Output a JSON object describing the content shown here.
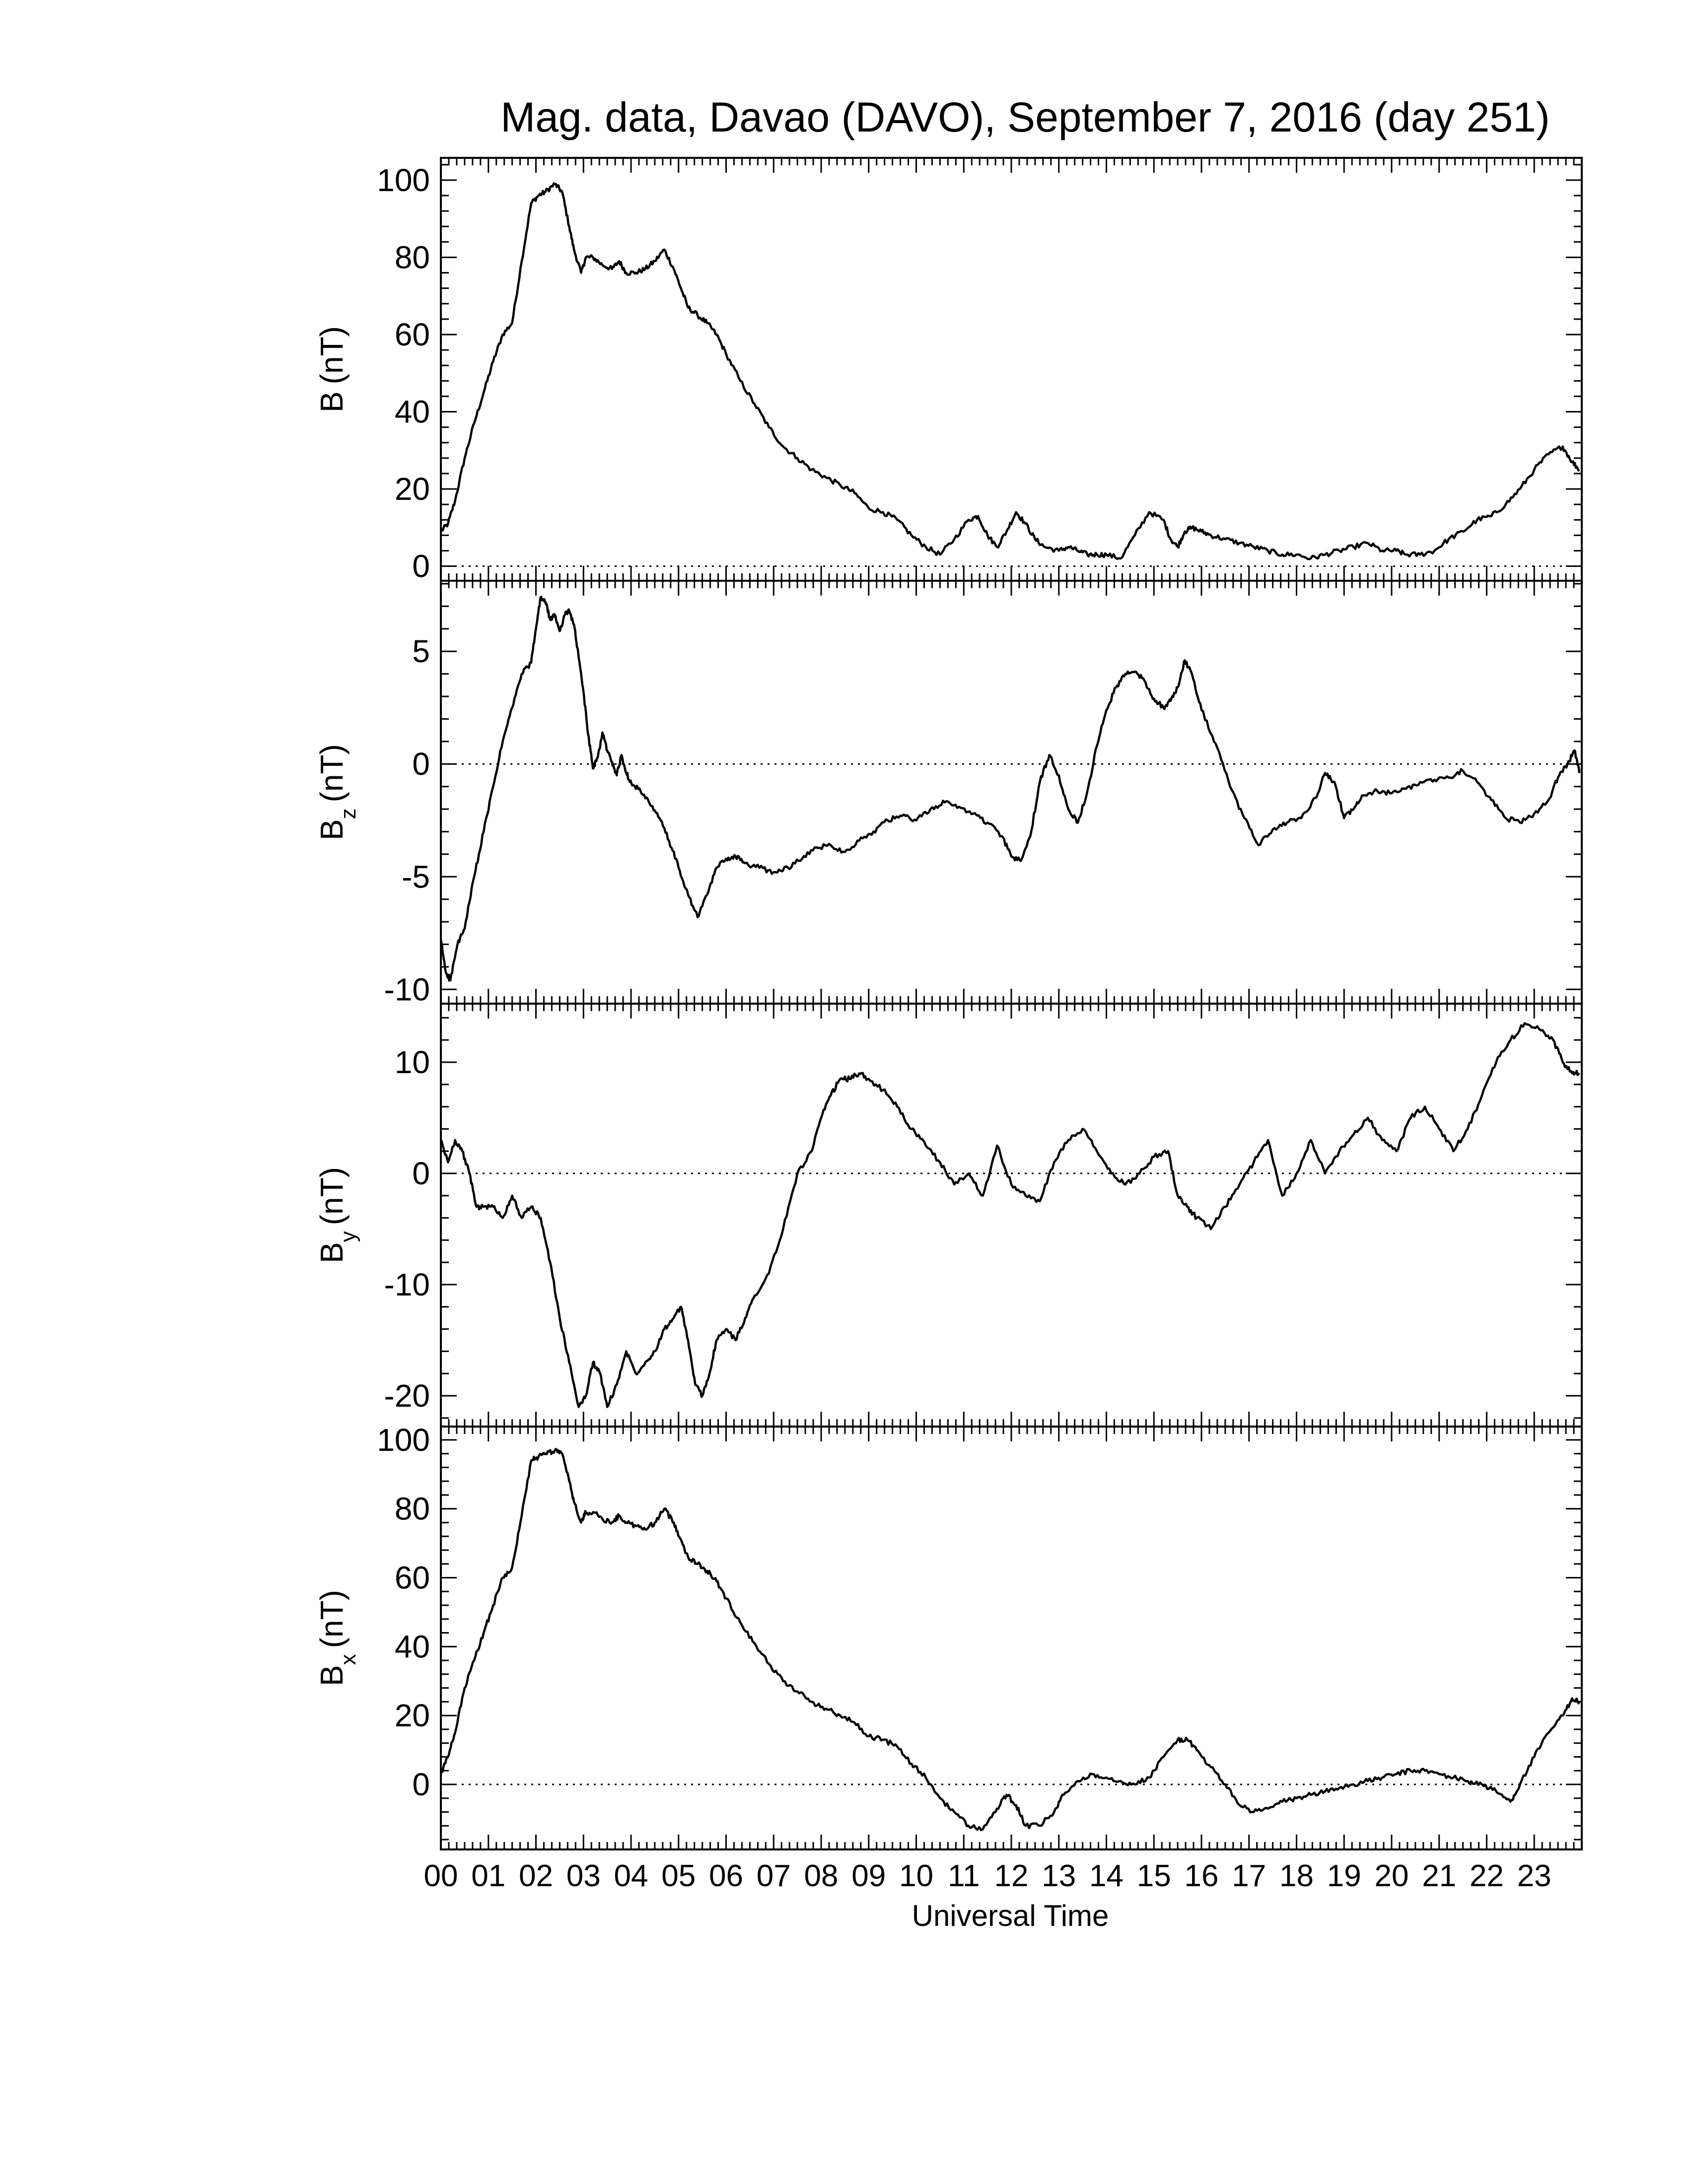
{
  "title": "Mag. data, Davao (DAVO), September 7, 2016 (day 251)",
  "x_axis": {
    "label": "Universal Time",
    "range": [
      0,
      24
    ],
    "tick_labels": [
      "00",
      "01",
      "02",
      "03",
      "04",
      "05",
      "06",
      "07",
      "08",
      "09",
      "10",
      "11",
      "12",
      "13",
      "14",
      "15",
      "16",
      "17",
      "18",
      "19",
      "20",
      "21",
      "22",
      "23"
    ]
  },
  "line_color": "#000000",
  "zero_line": "dotted",
  "chart_data": [
    {
      "type": "line",
      "name": "B",
      "ylabel_main": "B",
      "ylabel_sub": "",
      "ylabel_unit": "(nT)",
      "ylim": [
        -3,
        105
      ],
      "yticks": [
        0,
        20,
        40,
        60,
        80,
        100
      ],
      "x": [
        0,
        0.15,
        0.3,
        0.5,
        0.7,
        0.9,
        1.1,
        1.3,
        1.5,
        1.7,
        1.9,
        2.05,
        2.2,
        2.4,
        2.55,
        2.7,
        2.8,
        2.95,
        3.05,
        3.2,
        3.4,
        3.6,
        3.75,
        3.9,
        4.1,
        4.3,
        4.5,
        4.7,
        4.9,
        5.05,
        5.2,
        5.4,
        5.6,
        5.8,
        6.0,
        6.3,
        6.6,
        6.9,
        7.2,
        7.5,
        7.8,
        8.1,
        8.4,
        8.7,
        9.0,
        9.3,
        9.6,
        9.9,
        10.2,
        10.5,
        10.8,
        11.1,
        11.3,
        11.5,
        11.7,
        11.9,
        12.1,
        12.3,
        12.5,
        12.7,
        13.0,
        13.2,
        13.4,
        13.6,
        13.8,
        14.0,
        14.3,
        14.6,
        14.9,
        15.2,
        15.35,
        15.5,
        15.65,
        15.8,
        16.0,
        16.2,
        16.5,
        16.8,
        17.1,
        17.4,
        17.7,
        18.0,
        18.3,
        18.6,
        18.9,
        19.2,
        19.5,
        19.8,
        20.1,
        20.3,
        20.6,
        20.9,
        21.2,
        21.5,
        21.8,
        22.1,
        22.4,
        22.7,
        23.0,
        23.3,
        23.6,
        23.8,
        23.95
      ],
      "values": [
        9,
        11,
        17,
        28,
        37,
        45,
        53,
        60,
        63,
        79,
        94,
        96,
        97,
        99,
        97,
        88,
        82,
        76,
        80,
        80,
        78,
        77,
        79,
        76,
        76,
        77,
        79,
        82,
        77,
        72,
        67,
        65,
        63,
        60,
        55,
        48,
        42,
        36,
        31,
        28,
        25,
        23,
        21,
        19,
        15,
        14,
        12,
        8,
        5,
        3,
        7,
        12,
        13,
        8,
        5,
        9,
        14,
        11,
        7,
        5,
        4,
        5,
        4,
        3,
        3,
        3,
        2,
        8,
        14,
        12,
        7,
        5,
        9,
        10,
        9,
        8,
        7,
        6,
        5,
        4,
        3,
        3,
        2,
        3,
        4,
        5,
        6,
        4,
        4,
        3,
        3,
        4,
        7,
        9,
        12,
        13,
        16,
        20,
        25,
        29,
        31,
        27,
        25
      ]
    },
    {
      "type": "line",
      "name": "Bz",
      "ylabel_main": "B",
      "ylabel_sub": "z",
      "ylabel_unit": "(nT)",
      "ylim": [
        -10.5,
        8
      ],
      "yticks": [
        -10,
        -5,
        0,
        5
      ],
      "x": [
        0,
        0.1,
        0.2,
        0.35,
        0.5,
        0.7,
        0.9,
        1.1,
        1.3,
        1.5,
        1.7,
        1.9,
        2.0,
        2.1,
        2.2,
        2.3,
        2.4,
        2.5,
        2.6,
        2.7,
        2.8,
        2.9,
        3.0,
        3.1,
        3.2,
        3.3,
        3.4,
        3.5,
        3.6,
        3.7,
        3.8,
        3.9,
        4.0,
        4.2,
        4.4,
        4.6,
        4.8,
        5.0,
        5.2,
        5.4,
        5.6,
        5.8,
        6.0,
        6.2,
        6.4,
        6.7,
        7.0,
        7.3,
        7.6,
        7.9,
        8.2,
        8.5,
        8.8,
        9.1,
        9.4,
        9.7,
        10.0,
        10.3,
        10.6,
        10.9,
        11.2,
        11.5,
        11.8,
        12.0,
        12.2,
        12.4,
        12.6,
        12.8,
        13.0,
        13.2,
        13.4,
        13.6,
        13.8,
        14.0,
        14.2,
        14.4,
        14.6,
        14.8,
        15.0,
        15.2,
        15.35,
        15.5,
        15.65,
        15.8,
        16.0,
        16.3,
        16.6,
        16.9,
        17.2,
        17.5,
        17.8,
        18.1,
        18.4,
        18.6,
        18.8,
        19.0,
        19.2,
        19.4,
        19.7,
        20.0,
        20.3,
        20.6,
        20.9,
        21.2,
        21.5,
        21.8,
        22.1,
        22.4,
        22.7,
        23.0,
        23.3,
        23.5,
        23.7,
        23.85,
        23.95
      ],
      "values": [
        -7.8,
        -9.2,
        -9.6,
        -8.0,
        -7.3,
        -5.0,
        -3.0,
        -1.0,
        1.0,
        2.5,
        4.0,
        4.5,
        6.0,
        7.4,
        7.2,
        6.4,
        6.6,
        5.9,
        6.6,
        6.8,
        6.2,
        4.7,
        3.2,
        1.3,
        -0.2,
        0.3,
        1.4,
        0.6,
        0.1,
        -0.5,
        0.4,
        -0.4,
        -0.8,
        -1.2,
        -1.8,
        -2.4,
        -3.4,
        -4.6,
        -5.8,
        -6.8,
        -5.8,
        -4.6,
        -4.2,
        -4.1,
        -4.4,
        -4.6,
        -4.8,
        -4.6,
        -4.2,
        -3.7,
        -3.6,
        -3.9,
        -3.4,
        -3.0,
        -2.5,
        -2.3,
        -2.5,
        -2.0,
        -1.7,
        -1.9,
        -2.2,
        -2.6,
        -3.2,
        -4.1,
        -4.3,
        -3.2,
        -0.8,
        0.4,
        -0.5,
        -2.0,
        -2.6,
        -1.2,
        0.8,
        2.4,
        3.4,
        4.0,
        4.1,
        3.7,
        2.9,
        2.5,
        2.8,
        3.4,
        4.6,
        4.0,
        2.4,
        0.9,
        -1.0,
        -2.4,
        -3.6,
        -2.9,
        -2.6,
        -2.4,
        -1.5,
        -0.4,
        -0.8,
        -2.4,
        -2.0,
        -1.4,
        -1.2,
        -1.3,
        -1.1,
        -0.8,
        -0.7,
        -0.6,
        -0.3,
        -0.8,
        -1.6,
        -2.4,
        -2.6,
        -2.2,
        -1.6,
        -0.6,
        0.0,
        0.6,
        -0.4
      ]
    },
    {
      "type": "line",
      "name": "By",
      "ylabel_main": "B",
      "ylabel_sub": "y",
      "ylabel_unit": "(nT)",
      "ylim": [
        -22.5,
        15
      ],
      "yticks": [
        -20,
        -10,
        0,
        10
      ],
      "x": [
        0,
        0.15,
        0.3,
        0.45,
        0.6,
        0.75,
        0.9,
        1.1,
        1.3,
        1.5,
        1.7,
        1.9,
        2.1,
        2.3,
        2.5,
        2.7,
        2.9,
        3.05,
        3.2,
        3.35,
        3.5,
        3.7,
        3.9,
        4.1,
        4.3,
        4.5,
        4.7,
        4.9,
        5.05,
        5.2,
        5.35,
        5.5,
        5.65,
        5.8,
        6.0,
        6.2,
        6.4,
        6.6,
        6.9,
        7.2,
        7.5,
        7.8,
        8.0,
        8.2,
        8.4,
        8.6,
        8.8,
        9.0,
        9.3,
        9.6,
        9.9,
        10.2,
        10.5,
        10.8,
        11.1,
        11.4,
        11.7,
        12.0,
        12.3,
        12.6,
        12.9,
        13.2,
        13.5,
        13.8,
        14.1,
        14.4,
        14.7,
        15.0,
        15.3,
        15.5,
        15.7,
        15.9,
        16.2,
        16.5,
        16.8,
        17.1,
        17.4,
        17.7,
        18.0,
        18.3,
        18.6,
        18.9,
        19.2,
        19.5,
        19.8,
        20.1,
        20.4,
        20.7,
        21.0,
        21.3,
        21.6,
        21.9,
        22.2,
        22.5,
        22.8,
        23.1,
        23.4,
        23.6,
        23.8,
        23.95
      ],
      "values": [
        3,
        1,
        3,
        2,
        0,
        -3,
        -3,
        -3,
        -4,
        -2,
        -4,
        -3,
        -4,
        -8,
        -13,
        -17,
        -21,
        -20,
        -17,
        -18,
        -21,
        -19,
        -16,
        -18,
        -17,
        -16,
        -14,
        -13,
        -12,
        -15,
        -19,
        -20,
        -18,
        -15,
        -14,
        -15,
        -13,
        -11,
        -9,
        -5,
        0,
        2,
        5,
        7,
        8.5,
        8.5,
        9,
        8.5,
        7.5,
        6,
        4,
        2.5,
        1,
        -1,
        0,
        -2,
        2.5,
        -1,
        -2,
        -2.5,
        1,
        3,
        4,
        2,
        0,
        -1,
        0,
        1.5,
        2,
        -2,
        -3,
        -4,
        -5,
        -3,
        -1,
        1,
        3,
        -2,
        0,
        3,
        0,
        2,
        3.5,
        5,
        3,
        2,
        5,
        6,
        4,
        2,
        4,
        7,
        10,
        12,
        13.5,
        13,
        12,
        10,
        9,
        9
      ]
    },
    {
      "type": "line",
      "name": "Bx",
      "ylabel_main": "B",
      "ylabel_sub": "x",
      "ylabel_unit": "(nT)",
      "ylim": [
        -18,
        103
      ],
      "yticks": [
        0,
        20,
        40,
        60,
        80,
        100
      ],
      "x": [
        0,
        0.15,
        0.3,
        0.5,
        0.7,
        0.9,
        1.1,
        1.3,
        1.5,
        1.7,
        1.9,
        2.05,
        2.2,
        2.4,
        2.55,
        2.7,
        2.8,
        2.95,
        3.05,
        3.2,
        3.4,
        3.6,
        3.75,
        3.9,
        4.1,
        4.3,
        4.5,
        4.7,
        4.9,
        5.05,
        5.2,
        5.4,
        5.6,
        5.8,
        6.0,
        6.3,
        6.6,
        6.9,
        7.2,
        7.5,
        7.8,
        8.1,
        8.4,
        8.7,
        9.0,
        9.3,
        9.6,
        9.9,
        10.2,
        10.5,
        10.8,
        11.1,
        11.4,
        11.7,
        11.9,
        12.1,
        12.3,
        12.6,
        12.9,
        13.1,
        13.4,
        13.7,
        14.0,
        14.3,
        14.6,
        14.9,
        15.2,
        15.5,
        15.7,
        15.9,
        16.2,
        16.5,
        16.8,
        17.1,
        17.4,
        17.7,
        18.0,
        18.3,
        18.6,
        18.9,
        19.2,
        19.5,
        19.8,
        20.1,
        20.4,
        20.7,
        21.0,
        21.3,
        21.6,
        21.9,
        22.2,
        22.5,
        22.7,
        23.0,
        23.3,
        23.6,
        23.8,
        23.95
      ],
      "values": [
        3,
        8,
        15,
        28,
        36,
        44,
        52,
        60,
        63,
        78,
        94,
        95,
        96,
        97,
        96,
        88,
        82,
        76,
        79,
        79,
        77,
        76,
        78,
        76,
        75,
        74,
        76,
        80,
        76,
        71,
        66,
        64,
        62,
        59,
        54,
        47,
        41,
        35,
        30,
        27,
        24,
        22,
        20,
        18,
        14,
        13,
        11,
        6,
        2,
        -4,
        -8,
        -12,
        -13,
        -7,
        -3,
        -6,
        -12,
        -12,
        -8,
        -3,
        1,
        3,
        2,
        1,
        0,
        2,
        8,
        13,
        13,
        10,
        5,
        0,
        -6,
        -8,
        -7,
        -5,
        -4,
        -3,
        -2,
        -1,
        0,
        1,
        2,
        3,
        4,
        4,
        3,
        2,
        1,
        0,
        -2,
        -5,
        0,
        8,
        15,
        20,
        25,
        24
      ]
    }
  ]
}
